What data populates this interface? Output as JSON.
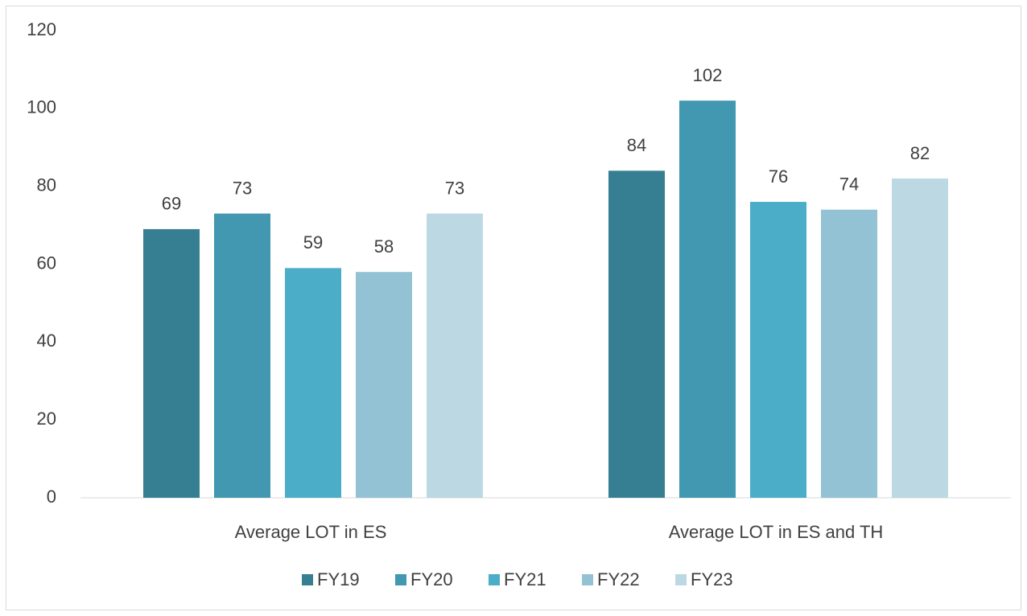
{
  "chart_data": {
    "type": "bar",
    "categories": [
      "Average LOT in ES",
      "Average LOT in ES and TH"
    ],
    "series": [
      {
        "name": "FY19",
        "color": "#367f93",
        "values": [
          69,
          84
        ]
      },
      {
        "name": "FY20",
        "color": "#4198b0",
        "values": [
          73,
          102
        ]
      },
      {
        "name": "FY21",
        "color": "#4badc7",
        "values": [
          59,
          76
        ]
      },
      {
        "name": "FY22",
        "color": "#93c2d4",
        "values": [
          58,
          74
        ]
      },
      {
        "name": "FY23",
        "color": "#bcd9e3",
        "values": [
          73,
          82
        ]
      }
    ],
    "ylim": [
      0,
      120
    ],
    "yticks": [
      0,
      20,
      40,
      60,
      80,
      100,
      120
    ],
    "grid": false,
    "legend": "bottom"
  }
}
